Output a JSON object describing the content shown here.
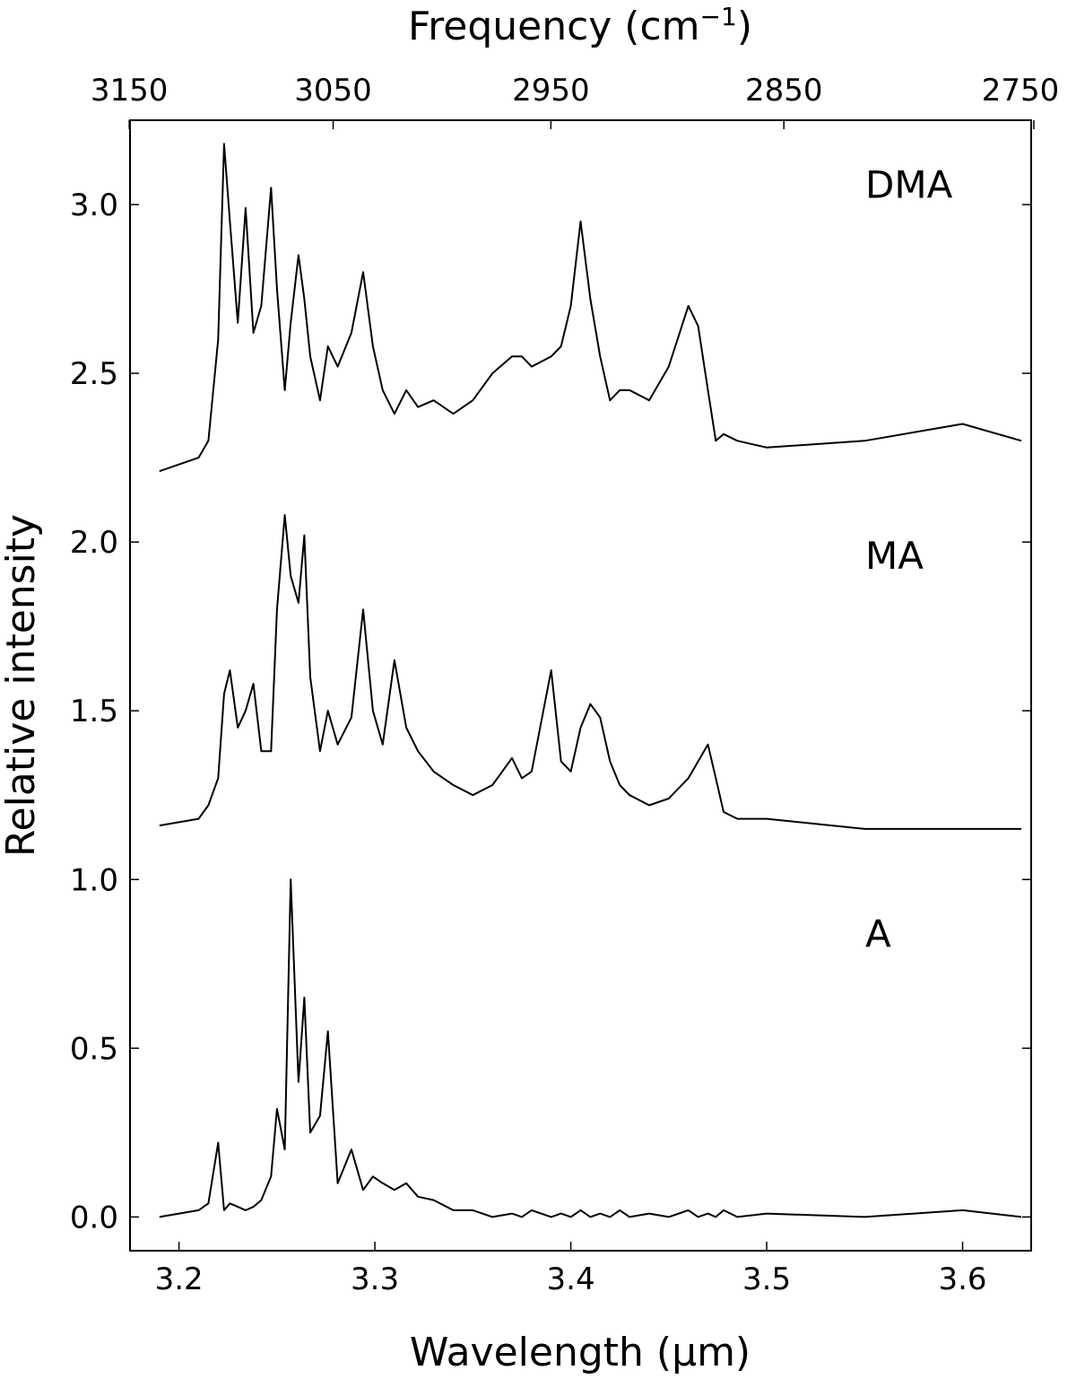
{
  "chart_data": {
    "type": "line",
    "title": "",
    "xlabel": "Wavelength (μm)",
    "ylabel": "Relative intensity",
    "x2label": "Frequency (cm",
    "x2label_sup": "−1",
    "x2label_close": ")",
    "xlim": [
      3.175,
      3.635
    ],
    "ylim": [
      -0.1,
      3.25
    ],
    "x_ticks": [
      3.2,
      3.3,
      3.4,
      3.5,
      3.6
    ],
    "x_tick_labels": [
      "3.2",
      "3.3",
      "3.4",
      "3.5",
      "3.6"
    ],
    "y_ticks": [
      0.0,
      0.5,
      1.0,
      1.5,
      2.0,
      2.5,
      3.0
    ],
    "y_tick_labels": [
      "0.0",
      "0.5",
      "1.0",
      "1.5",
      "2.0",
      "2.5",
      "3.0"
    ],
    "x2_ticks": [
      3150,
      3050,
      2950,
      2850,
      2750
    ],
    "x2_tick_labels": [
      "3150",
      "3050",
      "2950",
      "2850",
      "2750"
    ],
    "grid": false,
    "legend": "none",
    "x": [
      3.19,
      3.21,
      3.215,
      3.22,
      3.223,
      3.226,
      3.23,
      3.234,
      3.238,
      3.242,
      3.247,
      3.25,
      3.254,
      3.257,
      3.261,
      3.264,
      3.267,
      3.272,
      3.276,
      3.281,
      3.288,
      3.294,
      3.299,
      3.304,
      3.31,
      3.316,
      3.322,
      3.33,
      3.34,
      3.35,
      3.36,
      3.37,
      3.375,
      3.38,
      3.39,
      3.395,
      3.4,
      3.405,
      3.41,
      3.415,
      3.42,
      3.425,
      3.43,
      3.44,
      3.45,
      3.46,
      3.465,
      3.47,
      3.474,
      3.478,
      3.485,
      3.5,
      3.55,
      3.6,
      3.63
    ],
    "series": [
      {
        "name": "DMA",
        "values": [
          2.21,
          2.25,
          2.3,
          2.6,
          3.18,
          2.95,
          2.65,
          2.99,
          2.62,
          2.7,
          3.05,
          2.75,
          2.45,
          2.65,
          2.85,
          2.72,
          2.55,
          2.42,
          2.58,
          2.52,
          2.62,
          2.8,
          2.58,
          2.45,
          2.38,
          2.45,
          2.4,
          2.42,
          2.38,
          2.42,
          2.5,
          2.55,
          2.55,
          2.52,
          2.55,
          2.58,
          2.7,
          2.95,
          2.72,
          2.55,
          2.42,
          2.45,
          2.45,
          2.42,
          2.52,
          2.7,
          2.64,
          2.45,
          2.3,
          2.32,
          2.3,
          2.28,
          2.3,
          2.35,
          2.3
        ]
      },
      {
        "name": "MA",
        "values": [
          1.16,
          1.18,
          1.22,
          1.3,
          1.55,
          1.62,
          1.45,
          1.5,
          1.58,
          1.38,
          1.38,
          1.8,
          2.08,
          1.9,
          1.82,
          2.02,
          1.6,
          1.38,
          1.5,
          1.4,
          1.48,
          1.8,
          1.5,
          1.4,
          1.65,
          1.45,
          1.38,
          1.32,
          1.28,
          1.25,
          1.28,
          1.36,
          1.3,
          1.32,
          1.62,
          1.35,
          1.32,
          1.45,
          1.52,
          1.48,
          1.35,
          1.28,
          1.25,
          1.22,
          1.24,
          1.3,
          1.35,
          1.4,
          1.3,
          1.2,
          1.18,
          1.18,
          1.15,
          1.15,
          1.15
        ]
      },
      {
        "name": "A",
        "values": [
          0.0,
          0.02,
          0.04,
          0.22,
          0.02,
          0.04,
          0.03,
          0.02,
          0.03,
          0.05,
          0.12,
          0.32,
          0.2,
          1.0,
          0.4,
          0.65,
          0.25,
          0.3,
          0.55,
          0.1,
          0.2,
          0.08,
          0.12,
          0.1,
          0.08,
          0.1,
          0.06,
          0.05,
          0.02,
          0.02,
          0.0,
          0.01,
          0.0,
          0.02,
          0.0,
          0.01,
          0.0,
          0.02,
          0.0,
          0.01,
          0.0,
          0.02,
          0.0,
          0.01,
          0.0,
          0.02,
          0.0,
          0.01,
          0.0,
          0.02,
          0.0,
          0.01,
          0.0,
          0.02,
          0.0
        ]
      }
    ],
    "annotations": [
      "DMA",
      "MA",
      "A"
    ]
  }
}
